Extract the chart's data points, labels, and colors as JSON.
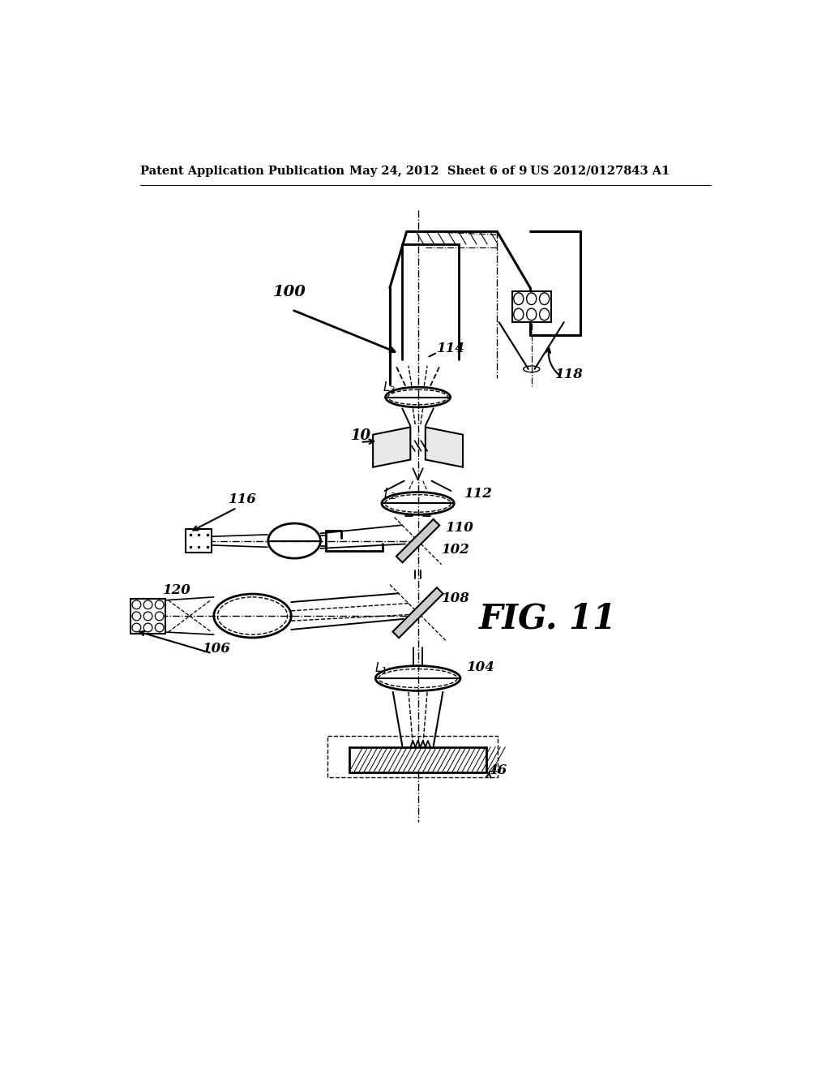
{
  "bg_color": "#ffffff",
  "header_left": "Patent Application Publication",
  "header_mid": "May 24, 2012  Sheet 6 of 9",
  "header_right": "US 2012/0127843 A1",
  "fig_label": "FIG. 11"
}
